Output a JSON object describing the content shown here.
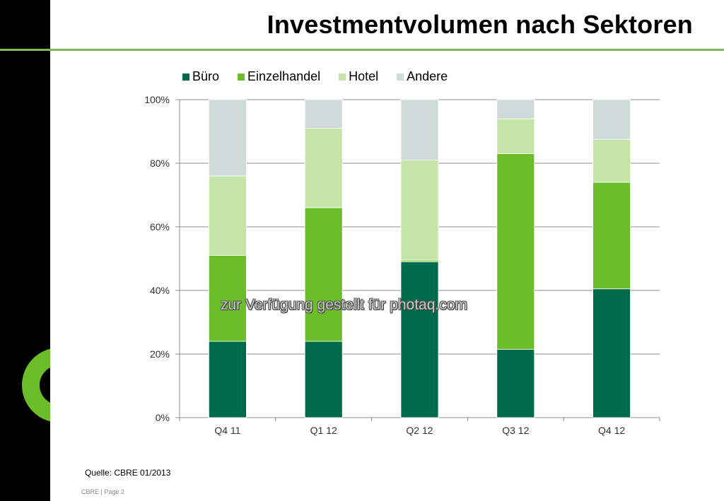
{
  "slide": {
    "title": "Investmentvolumen nach Sektoren",
    "source": "Quelle: CBRE 01/2013",
    "footer": "CBRE | Page 2",
    "watermark": "zur Verfügung gestellt für photaq.com",
    "accent_color": "#6cbd2a",
    "rule_color": "#7fb955"
  },
  "chart_data": {
    "type": "bar",
    "stacked": true,
    "normalized": true,
    "title": "Investmentvolumen nach Sektoren",
    "xlabel": "",
    "ylabel": "",
    "categories": [
      "Q4 11",
      "Q1 12",
      "Q2 12",
      "Q3 12",
      "Q4 12"
    ],
    "series": [
      {
        "name": "Büro",
        "color": "#006b4a",
        "values": [
          24,
          24,
          49,
          21.5,
          40.5
        ]
      },
      {
        "name": "Einzelhandel",
        "color": "#6cbd2a",
        "values": [
          27,
          42,
          0.5,
          61.5,
          33.5
        ]
      },
      {
        "name": "Hotel",
        "color": "#c4e4a8",
        "values": [
          25,
          25,
          31.5,
          11,
          13.5
        ]
      },
      {
        "name": "Andere",
        "color": "#cddcd9",
        "values": [
          24,
          9,
          19,
          6,
          12.5
        ]
      }
    ],
    "ylim": [
      0,
      100
    ],
    "yticks": [
      0,
      20,
      40,
      60,
      80,
      100
    ],
    "ytick_labels": [
      "0%",
      "20%",
      "40%",
      "60%",
      "80%",
      "100%"
    ],
    "grid": true,
    "legend_position": "top"
  }
}
